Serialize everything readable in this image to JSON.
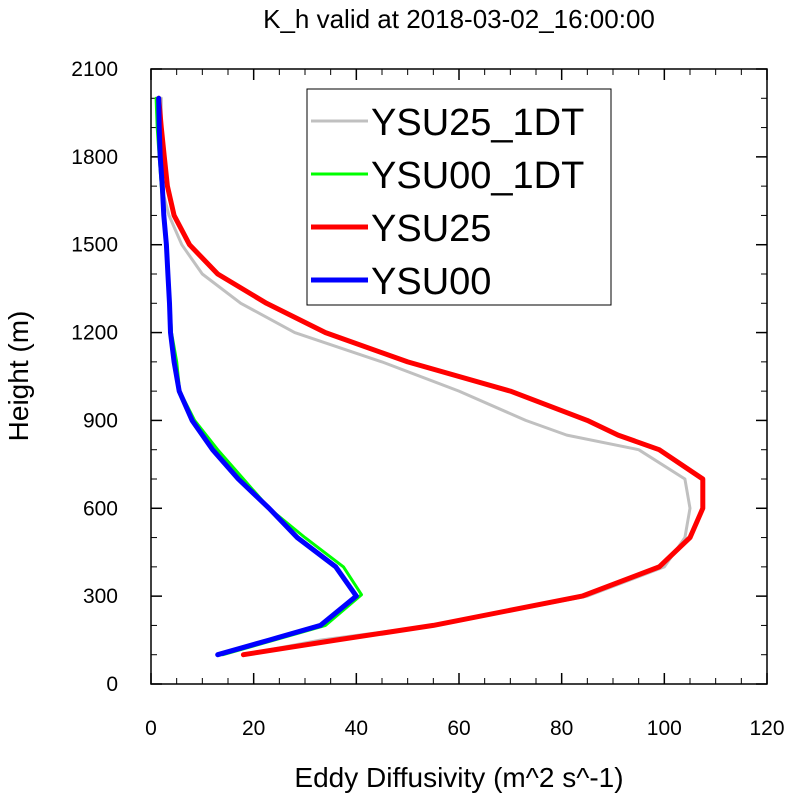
{
  "chart_data": {
    "type": "line",
    "title": "K_h valid at 2018-03-02_16:00:00",
    "xlabel": "Eddy Diffusivity (m^2 s^-1)",
    "ylabel": "Height (m)",
    "xlim": [
      0,
      120
    ],
    "ylim": [
      0,
      2100
    ],
    "xticks": [
      0,
      20,
      40,
      60,
      80,
      100,
      120
    ],
    "yticks": [
      0,
      300,
      600,
      900,
      1200,
      1500,
      1800,
      2100
    ],
    "xminor": 5,
    "yminor": 100,
    "grid": false,
    "legend_position": "top-right",
    "series": [
      {
        "name": "YSU25_1DT",
        "color": "#c0c0c0",
        "width": 3,
        "points": [
          [
            2,
            2000
          ],
          [
            2,
            1900
          ],
          [
            2,
            1800
          ],
          [
            2,
            1700
          ],
          [
            3.5,
            1600
          ],
          [
            6,
            1500
          ],
          [
            10,
            1400
          ],
          [
            17.5,
            1300
          ],
          [
            28,
            1200
          ],
          [
            45,
            1100
          ],
          [
            60,
            1000
          ],
          [
            73,
            900
          ],
          [
            81,
            850
          ],
          [
            95,
            800
          ],
          [
            104,
            700
          ],
          [
            105,
            600
          ],
          [
            104,
            500
          ],
          [
            100,
            400
          ],
          [
            85,
            300
          ],
          [
            55,
            200
          ],
          [
            33,
            150
          ],
          [
            18,
            100
          ]
        ]
      },
      {
        "name": "YSU00_1DT",
        "color": "#00ff00",
        "width": 3,
        "points": [
          [
            1,
            2000
          ],
          [
            1.2,
            1900
          ],
          [
            1.6,
            1800
          ],
          [
            2,
            1700
          ],
          [
            2.5,
            1600
          ],
          [
            3,
            1500
          ],
          [
            3.4,
            1400
          ],
          [
            3.7,
            1300
          ],
          [
            4,
            1200
          ],
          [
            5,
            1100
          ],
          [
            5.6,
            1000
          ],
          [
            8.5,
            900
          ],
          [
            13,
            800
          ],
          [
            18,
            700
          ],
          [
            23,
            600
          ],
          [
            30,
            500
          ],
          [
            37.5,
            400
          ],
          [
            41,
            305
          ],
          [
            34,
            200
          ],
          [
            24,
            150
          ],
          [
            14,
            100
          ]
        ]
      },
      {
        "name": "YSU25",
        "color": "#ff0000",
        "width": 5,
        "points": [
          [
            1.5,
            2000
          ],
          [
            2,
            1900
          ],
          [
            2.6,
            1800
          ],
          [
            3.2,
            1700
          ],
          [
            4.5,
            1600
          ],
          [
            7.5,
            1500
          ],
          [
            13,
            1400
          ],
          [
            22.5,
            1300
          ],
          [
            34,
            1200
          ],
          [
            50,
            1100
          ],
          [
            70,
            1000
          ],
          [
            85,
            900
          ],
          [
            91,
            850
          ],
          [
            99,
            800
          ],
          [
            107.5,
            700
          ],
          [
            107.5,
            600
          ],
          [
            105,
            500
          ],
          [
            99,
            400
          ],
          [
            84,
            300
          ],
          [
            55,
            200
          ],
          [
            36,
            150
          ],
          [
            18,
            100
          ]
        ]
      },
      {
        "name": "YSU00",
        "color": "#0000ff",
        "width": 5,
        "points": [
          [
            1.5,
            2000
          ],
          [
            1.6,
            1900
          ],
          [
            1.8,
            1800
          ],
          [
            2.2,
            1700
          ],
          [
            2.5,
            1600
          ],
          [
            3,
            1500
          ],
          [
            3.3,
            1400
          ],
          [
            3.6,
            1300
          ],
          [
            3.8,
            1200
          ],
          [
            4.5,
            1100
          ],
          [
            5.5,
            1000
          ],
          [
            8,
            900
          ],
          [
            12,
            800
          ],
          [
            17,
            700
          ],
          [
            23,
            600
          ],
          [
            28.5,
            500
          ],
          [
            36,
            400
          ],
          [
            40,
            300
          ],
          [
            33,
            200
          ],
          [
            23,
            150
          ],
          [
            13,
            100
          ]
        ]
      }
    ]
  }
}
